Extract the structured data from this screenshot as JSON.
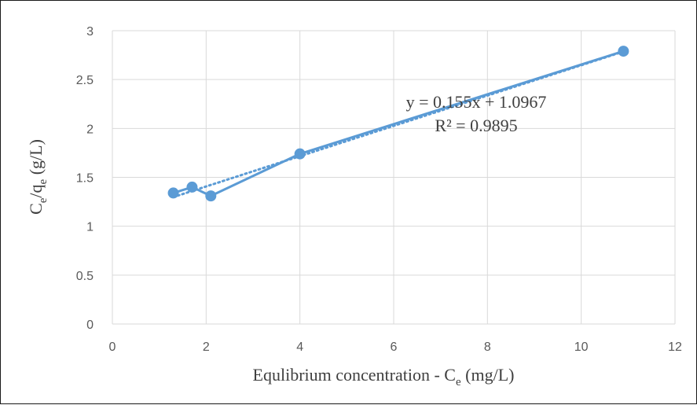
{
  "chart_data": {
    "type": "scatter",
    "xlabel": {
      "main": "Equlibrium concentration - C",
      "sub": "e",
      "tail": " (mg/L)"
    },
    "ylabel": {
      "c": "C",
      "c_sub": "e",
      "slash": "/q",
      "q_sub": "e",
      "tail": " (g/L)"
    },
    "xlim": [
      0,
      12
    ],
    "ylim": [
      0,
      3
    ],
    "x_ticks": [
      0,
      2,
      4,
      6,
      8,
      10,
      12
    ],
    "y_ticks": [
      0,
      0.5,
      1,
      1.5,
      2,
      2.5,
      3
    ],
    "x_tick_labels": [
      "0",
      "2",
      "4",
      "6",
      "8",
      "10",
      "12"
    ],
    "y_tick_labels": [
      "0",
      "0.5",
      "1",
      "1.5",
      "2",
      "2.5",
      "3"
    ],
    "grid": true,
    "series": [
      {
        "x": [
          1.3,
          1.7,
          2.1,
          4.0,
          10.9
        ],
        "y": [
          1.34,
          1.4,
          1.31,
          1.74,
          2.79
        ],
        "color": "#5b9bd5",
        "markers": true,
        "connected": true
      }
    ],
    "trendline": {
      "type": "linear",
      "slope": 0.155,
      "intercept": 1.0967,
      "x_range": [
        1.3,
        10.9
      ],
      "style": "dotted",
      "color": "#5b9bd5",
      "equation": "y = 0.155x + 1.0967",
      "r_squared": "R² = 0.9895"
    }
  }
}
